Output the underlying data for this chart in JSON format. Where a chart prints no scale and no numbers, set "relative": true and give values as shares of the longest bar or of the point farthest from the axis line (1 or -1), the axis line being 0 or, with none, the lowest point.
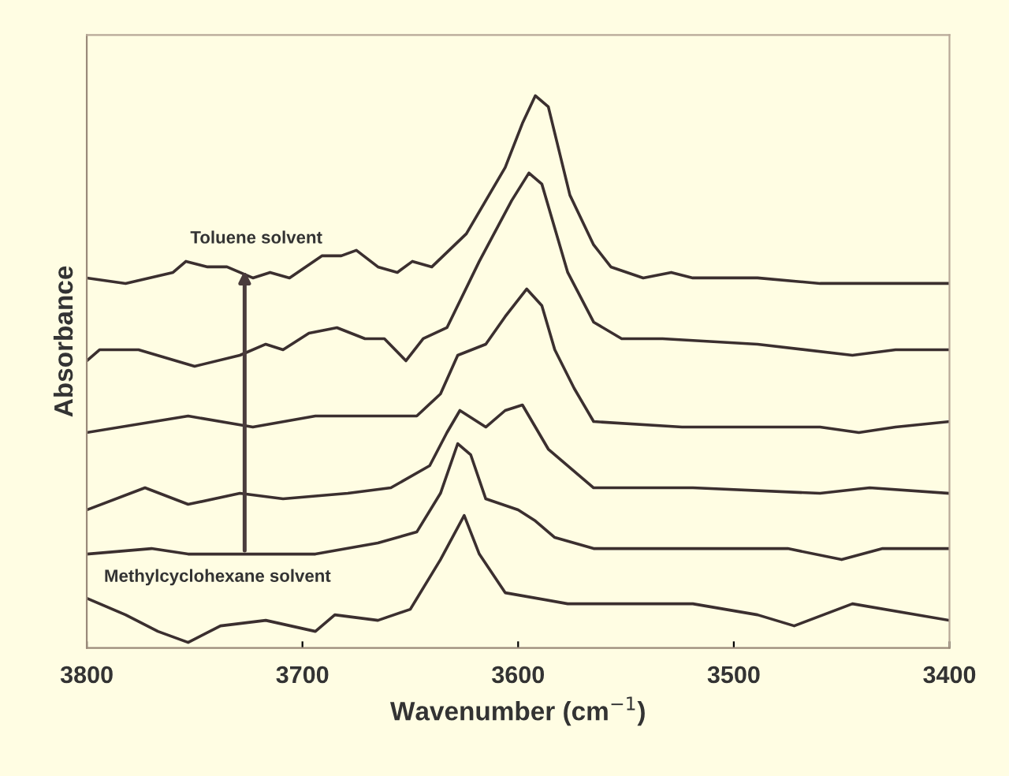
{
  "chart_data": {
    "type": "line",
    "relative": true,
    "xlabel": "Wavenumber (cm$^{−1}$)",
    "ylabel": "Absorbance",
    "xlim": [
      3800,
      3400
    ],
    "xticks": [
      3800,
      3700,
      3600,
      3500,
      3400
    ],
    "grid": false,
    "marker": "none",
    "line_style": "solid",
    "annotations": [
      "Toluene solvent",
      "Methylcyclohexane solvent"
    ],
    "series": [
      {
        "color": "#3b2f2f",
        "x": [
          3800,
          3782,
          3767,
          3753,
          3738,
          3717,
          3694,
          3685,
          3665,
          3650,
          3636,
          3625,
          3618,
          3606,
          3577,
          3519,
          3489,
          3472,
          3445,
          3400
        ],
        "values": [
          0.09,
          0.06,
          0.03,
          0.01,
          0.04,
          0.05,
          0.03,
          0.06,
          0.05,
          0.07,
          0.16,
          0.24,
          0.17,
          0.1,
          0.08,
          0.08,
          0.06,
          0.04,
          0.08,
          0.05
        ]
      },
      {
        "color": "#3b2f2f",
        "x": [
          3800,
          3770,
          3753,
          3726,
          3694,
          3665,
          3647,
          3636,
          3628,
          3622,
          3615,
          3600,
          3592,
          3583,
          3565,
          3519,
          3475,
          3450,
          3431,
          3400
        ],
        "values": [
          0.17,
          0.18,
          0.17,
          0.17,
          0.17,
          0.19,
          0.21,
          0.28,
          0.37,
          0.35,
          0.27,
          0.25,
          0.23,
          0.2,
          0.18,
          0.18,
          0.18,
          0.16,
          0.18,
          0.18
        ]
      },
      {
        "color": "#3b2f2f",
        "x": [
          3800,
          3773,
          3753,
          3729,
          3709,
          3679,
          3659,
          3641,
          3633,
          3627,
          3615,
          3606,
          3598,
          3586,
          3565,
          3519,
          3460,
          3437,
          3400
        ],
        "values": [
          0.25,
          0.29,
          0.26,
          0.28,
          0.27,
          0.28,
          0.29,
          0.33,
          0.39,
          0.43,
          0.4,
          0.43,
          0.44,
          0.36,
          0.29,
          0.29,
          0.28,
          0.29,
          0.28
        ]
      },
      {
        "color": "#3b2f2f",
        "x": [
          3800,
          3753,
          3723,
          3694,
          3665,
          3647,
          3636,
          3628,
          3615,
          3606,
          3596,
          3589,
          3583,
          3574,
          3565,
          3524,
          3489,
          3460,
          3442,
          3425,
          3400
        ],
        "values": [
          0.39,
          0.42,
          0.4,
          0.42,
          0.42,
          0.42,
          0.46,
          0.53,
          0.55,
          0.6,
          0.65,
          0.62,
          0.54,
          0.47,
          0.41,
          0.4,
          0.4,
          0.4,
          0.39,
          0.4,
          0.41
        ]
      },
      {
        "color": "#3b2f2f",
        "x": [
          3800,
          3794,
          3776,
          3750,
          3729,
          3717,
          3709,
          3697,
          3684,
          3671,
          3662,
          3652,
          3644,
          3633,
          3618,
          3603,
          3595,
          3589,
          3577,
          3565,
          3552,
          3533,
          3489,
          3445,
          3425,
          3400
        ],
        "values": [
          0.52,
          0.54,
          0.54,
          0.51,
          0.53,
          0.55,
          0.54,
          0.57,
          0.58,
          0.56,
          0.56,
          0.52,
          0.56,
          0.58,
          0.7,
          0.81,
          0.86,
          0.84,
          0.68,
          0.59,
          0.56,
          0.56,
          0.55,
          0.53,
          0.54,
          0.54
        ]
      },
      {
        "color": "#3b2f2f",
        "x": [
          3800,
          3782,
          3760,
          3754,
          3744,
          3735,
          3723,
          3715,
          3706,
          3691,
          3682,
          3675,
          3665,
          3656,
          3649,
          3640,
          3624,
          3606,
          3598,
          3592,
          3586,
          3576,
          3565,
          3557,
          3542,
          3529,
          3519,
          3489,
          3460,
          3440,
          3400
        ],
        "values": [
          0.67,
          0.66,
          0.68,
          0.7,
          0.69,
          0.69,
          0.67,
          0.68,
          0.67,
          0.71,
          0.71,
          0.72,
          0.69,
          0.68,
          0.7,
          0.69,
          0.75,
          0.87,
          0.95,
          1.0,
          0.98,
          0.82,
          0.73,
          0.69,
          0.67,
          0.68,
          0.67,
          0.67,
          0.66,
          0.66,
          0.66
        ]
      }
    ]
  }
}
